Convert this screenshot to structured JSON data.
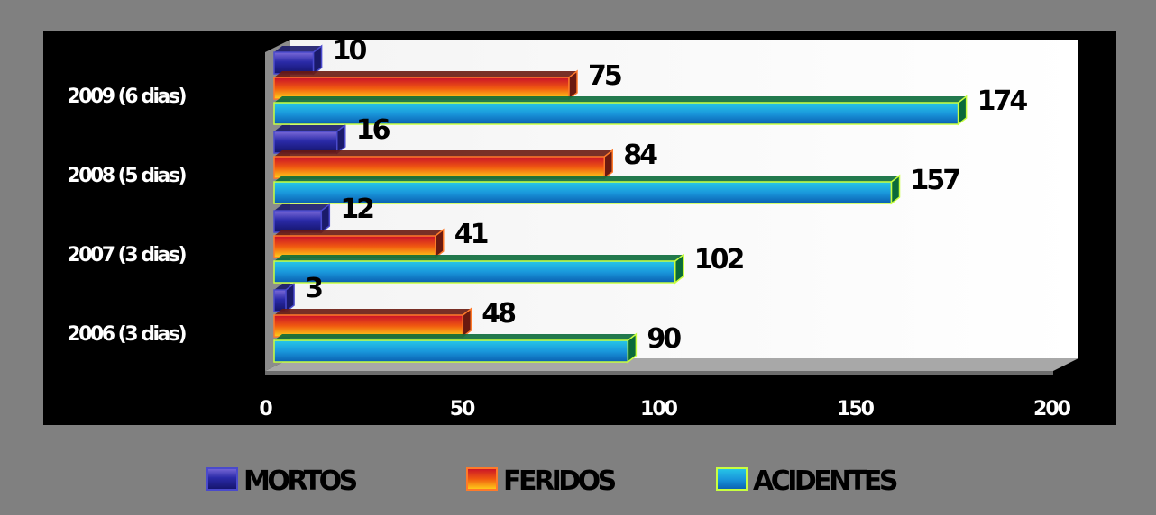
{
  "chart_data": {
    "type": "bar",
    "orientation": "horizontal",
    "categories": [
      "2006 (3 dias)",
      "2007 (3 dias)",
      "2008 (5 dias)",
      "2009 (6 dias)"
    ],
    "series": [
      {
        "name": "MORTOS",
        "values": [
          3,
          12,
          16,
          10
        ],
        "color": "#2a2aa0"
      },
      {
        "name": "FERIDOS",
        "values": [
          48,
          41,
          84,
          75
        ],
        "color": "#e8380a"
      },
      {
        "name": "ACIDENTES",
        "values": [
          90,
          102,
          157,
          174
        ],
        "color": "#1aa0e0"
      }
    ],
    "x_ticks": [
      "0",
      "50",
      "100",
      "150",
      "200"
    ],
    "xlim": [
      0,
      200
    ],
    "title": "",
    "xlabel": "",
    "ylabel": "",
    "grid": false,
    "legend_position": "bottom"
  }
}
